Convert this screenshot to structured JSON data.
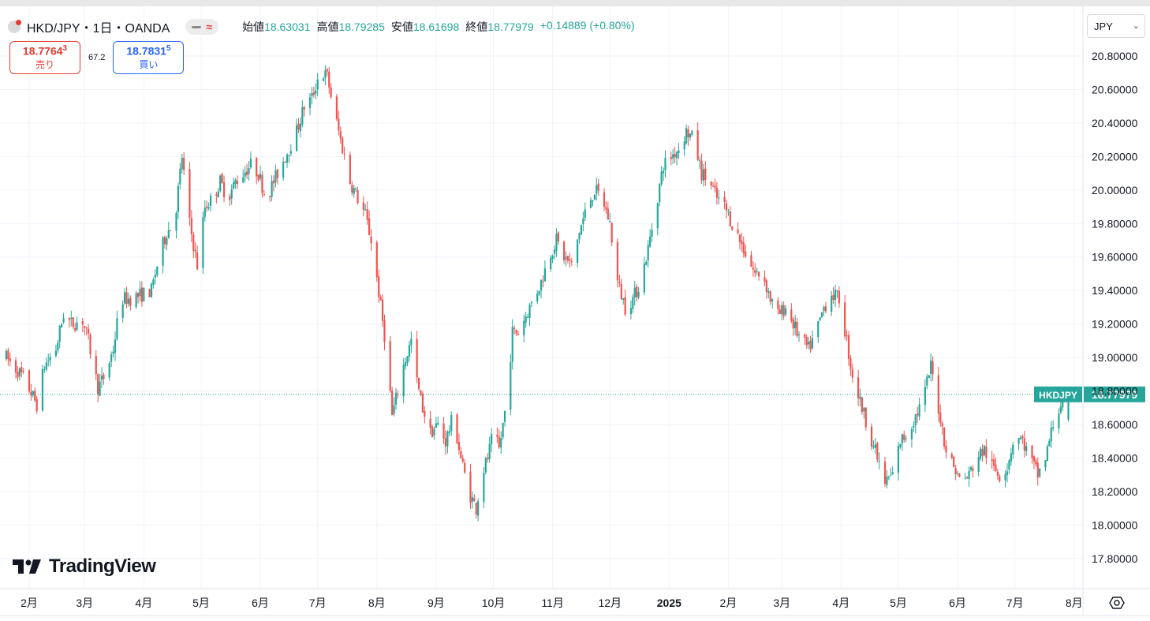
{
  "header": {
    "title": "HKD/JPY・1日・OANDA",
    "open_label": "始値",
    "open": "18.63031",
    "high_label": "高値",
    "high": "18.79285",
    "low_label": "安値",
    "low": "18.61698",
    "close_label": "終値",
    "close": "18.77979",
    "change": "+0.14889 (+0.80%)"
  },
  "trade": {
    "sell_price_main": "18.7764",
    "sell_price_sup": "3",
    "sell_label": "売り",
    "spread": "67.2",
    "buy_price_main": "18.7831",
    "buy_price_sup": "5",
    "buy_label": "買い"
  },
  "unit_select": {
    "value": "JPY"
  },
  "logo": {
    "text": "TradingView"
  },
  "colors": {
    "up": "#26a69a",
    "down": "#ef5350",
    "last_price": "#26a69a"
  },
  "chart_data": {
    "type": "candlestick",
    "symbol": "HKD/JPY",
    "interval": "1日",
    "source": "OANDA",
    "ylim": [
      17.7,
      20.9
    ],
    "y_ticks": [
      "20.80000",
      "20.60000",
      "20.40000",
      "20.20000",
      "20.00000",
      "19.80000",
      "19.60000",
      "19.40000",
      "19.20000",
      "19.00000",
      "18.80000",
      "18.60000",
      "18.40000",
      "18.20000",
      "18.00000",
      "17.80000"
    ],
    "y_tick_values": [
      20.8,
      20.6,
      20.4,
      20.2,
      20.0,
      19.8,
      19.6,
      19.4,
      19.2,
      19.0,
      18.8,
      18.6,
      18.4,
      18.2,
      18.0,
      17.8
    ],
    "x_ticks": [
      {
        "label": "2月",
        "day": 0
      },
      {
        "label": "3月",
        "day": 29
      },
      {
        "label": "4月",
        "day": 60
      },
      {
        "label": "5月",
        "day": 90
      },
      {
        "label": "6月",
        "day": 121
      },
      {
        "label": "7月",
        "day": 151
      },
      {
        "label": "8月",
        "day": 182
      },
      {
        "label": "9月",
        "day": 213
      },
      {
        "label": "10月",
        "day": 243
      },
      {
        "label": "11月",
        "day": 274
      },
      {
        "label": "12月",
        "day": 304
      },
      {
        "label": "2025",
        "day": 335,
        "bold": true
      },
      {
        "label": "2月",
        "day": 366
      },
      {
        "label": "3月",
        "day": 394
      },
      {
        "label": "4月",
        "day": 425
      },
      {
        "label": "5月",
        "day": 455
      },
      {
        "label": "6月",
        "day": 486
      },
      {
        "label": "7月",
        "day": 516
      },
      {
        "label": "8月",
        "day": 547
      }
    ],
    "last_price": {
      "label": "HKDJPY",
      "value": 18.77979,
      "value_label": "18.77979"
    },
    "anchors": [
      [
        -12,
        19.0
      ],
      [
        -3,
        18.88
      ],
      [
        4,
        18.72
      ],
      [
        8,
        18.95
      ],
      [
        14,
        19.05
      ],
      [
        18,
        19.26
      ],
      [
        22,
        19.2
      ],
      [
        28,
        19.22
      ],
      [
        31,
        19.1
      ],
      [
        36,
        18.82
      ],
      [
        40,
        18.9
      ],
      [
        44,
        19.05
      ],
      [
        48,
        19.35
      ],
      [
        53,
        19.35
      ],
      [
        60,
        19.38
      ],
      [
        64,
        19.4
      ],
      [
        68,
        19.6
      ],
      [
        72,
        19.75
      ],
      [
        76,
        19.8
      ],
      [
        80,
        20.2
      ],
      [
        84,
        19.8
      ],
      [
        88,
        19.55
      ],
      [
        92,
        19.9
      ],
      [
        96,
        19.95
      ],
      [
        100,
        20.05
      ],
      [
        104,
        19.95
      ],
      [
        108,
        20.05
      ],
      [
        112,
        20.1
      ],
      [
        116,
        20.15
      ],
      [
        120,
        20.1
      ],
      [
        124,
        19.95
      ],
      [
        128,
        20.05
      ],
      [
        132,
        20.15
      ],
      [
        136,
        20.25
      ],
      [
        140,
        20.35
      ],
      [
        144,
        20.5
      ],
      [
        148,
        20.55
      ],
      [
        152,
        20.7
      ],
      [
        156,
        20.68
      ],
      [
        160,
        20.45
      ],
      [
        164,
        20.25
      ],
      [
        168,
        20.05
      ],
      [
        172,
        19.95
      ],
      [
        176,
        19.85
      ],
      [
        180,
        19.65
      ],
      [
        184,
        19.3
      ],
      [
        187,
        19.05
      ],
      [
        190,
        18.65
      ],
      [
        192,
        18.75
      ],
      [
        196,
        18.95
      ],
      [
        200,
        19.1
      ],
      [
        203,
        18.85
      ],
      [
        206,
        18.7
      ],
      [
        210,
        18.55
      ],
      [
        214,
        18.6
      ],
      [
        218,
        18.5
      ],
      [
        222,
        18.65
      ],
      [
        226,
        18.4
      ],
      [
        230,
        18.2
      ],
      [
        234,
        18.1
      ],
      [
        237,
        18.3
      ],
      [
        240,
        18.4
      ],
      [
        243,
        18.55
      ],
      [
        246,
        18.45
      ],
      [
        250,
        18.75
      ],
      [
        253,
        19.15
      ],
      [
        256,
        19.15
      ],
      [
        260,
        19.25
      ],
      [
        264,
        19.35
      ],
      [
        268,
        19.45
      ],
      [
        272,
        19.6
      ],
      [
        276,
        19.7
      ],
      [
        280,
        19.6
      ],
      [
        284,
        19.55
      ],
      [
        288,
        19.75
      ],
      [
        292,
        19.9
      ],
      [
        296,
        20.0
      ],
      [
        300,
        19.95
      ],
      [
        304,
        19.8
      ],
      [
        308,
        19.45
      ],
      [
        312,
        19.3
      ],
      [
        316,
        19.35
      ],
      [
        320,
        19.45
      ],
      [
        324,
        19.65
      ],
      [
        328,
        19.9
      ],
      [
        332,
        20.15
      ],
      [
        336,
        20.2
      ],
      [
        340,
        20.25
      ],
      [
        344,
        20.35
      ],
      [
        348,
        20.3
      ],
      [
        352,
        20.1
      ],
      [
        356,
        20.05
      ],
      [
        360,
        19.95
      ],
      [
        364,
        19.9
      ],
      [
        368,
        19.8
      ],
      [
        372,
        19.7
      ],
      [
        376,
        19.6
      ],
      [
        380,
        19.5
      ],
      [
        384,
        19.5
      ],
      [
        388,
        19.35
      ],
      [
        392,
        19.25
      ],
      [
        396,
        19.3
      ],
      [
        400,
        19.2
      ],
      [
        404,
        19.1
      ],
      [
        408,
        19.05
      ],
      [
        412,
        19.15
      ],
      [
        416,
        19.3
      ],
      [
        420,
        19.38
      ],
      [
        424,
        19.35
      ],
      [
        428,
        19.1
      ],
      [
        430,
        18.95
      ],
      [
        432,
        18.85
      ],
      [
        436,
        18.7
      ],
      [
        440,
        18.55
      ],
      [
        444,
        18.4
      ],
      [
        448,
        18.25
      ],
      [
        452,
        18.3
      ],
      [
        456,
        18.5
      ],
      [
        460,
        18.55
      ],
      [
        464,
        18.65
      ],
      [
        468,
        18.75
      ],
      [
        472,
        18.95
      ],
      [
        476,
        18.7
      ],
      [
        480,
        18.45
      ],
      [
        484,
        18.35
      ],
      [
        488,
        18.25
      ],
      [
        492,
        18.3
      ],
      [
        496,
        18.4
      ],
      [
        500,
        18.45
      ],
      [
        504,
        18.35
      ],
      [
        508,
        18.3
      ],
      [
        512,
        18.35
      ],
      [
        516,
        18.55
      ],
      [
        520,
        18.5
      ],
      [
        524,
        18.4
      ],
      [
        528,
        18.3
      ],
      [
        532,
        18.4
      ],
      [
        536,
        18.6
      ],
      [
        540,
        18.72
      ],
      [
        544,
        18.78
      ]
    ]
  }
}
